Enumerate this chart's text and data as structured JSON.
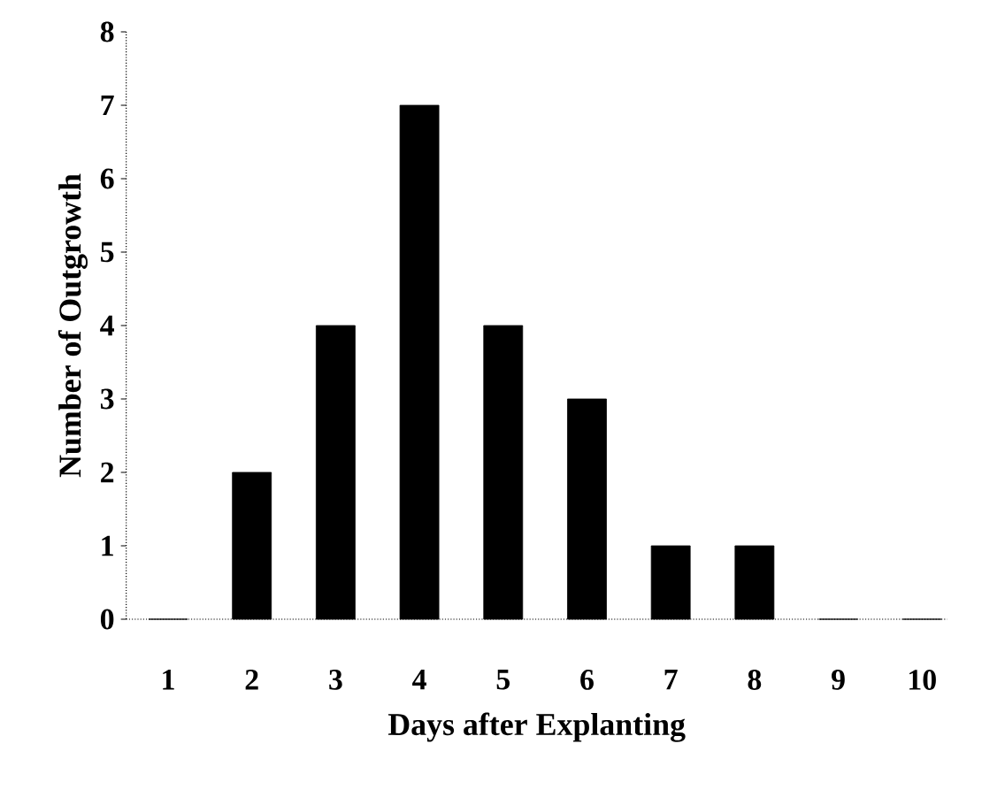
{
  "chart_data": {
    "type": "bar",
    "xlabel": "Days after Explanting",
    "ylabel": "Number of Outgrowth",
    "categories": [
      "1",
      "2",
      "3",
      "4",
      "5",
      "6",
      "7",
      "8",
      "9",
      "10"
    ],
    "values": [
      0,
      2,
      4,
      7,
      4,
      3,
      1,
      1,
      0,
      0
    ],
    "color": "#000000",
    "ylim": [
      0,
      8
    ],
    "yticks": [
      0,
      1,
      2,
      3,
      4,
      5,
      6,
      7,
      8
    ]
  }
}
